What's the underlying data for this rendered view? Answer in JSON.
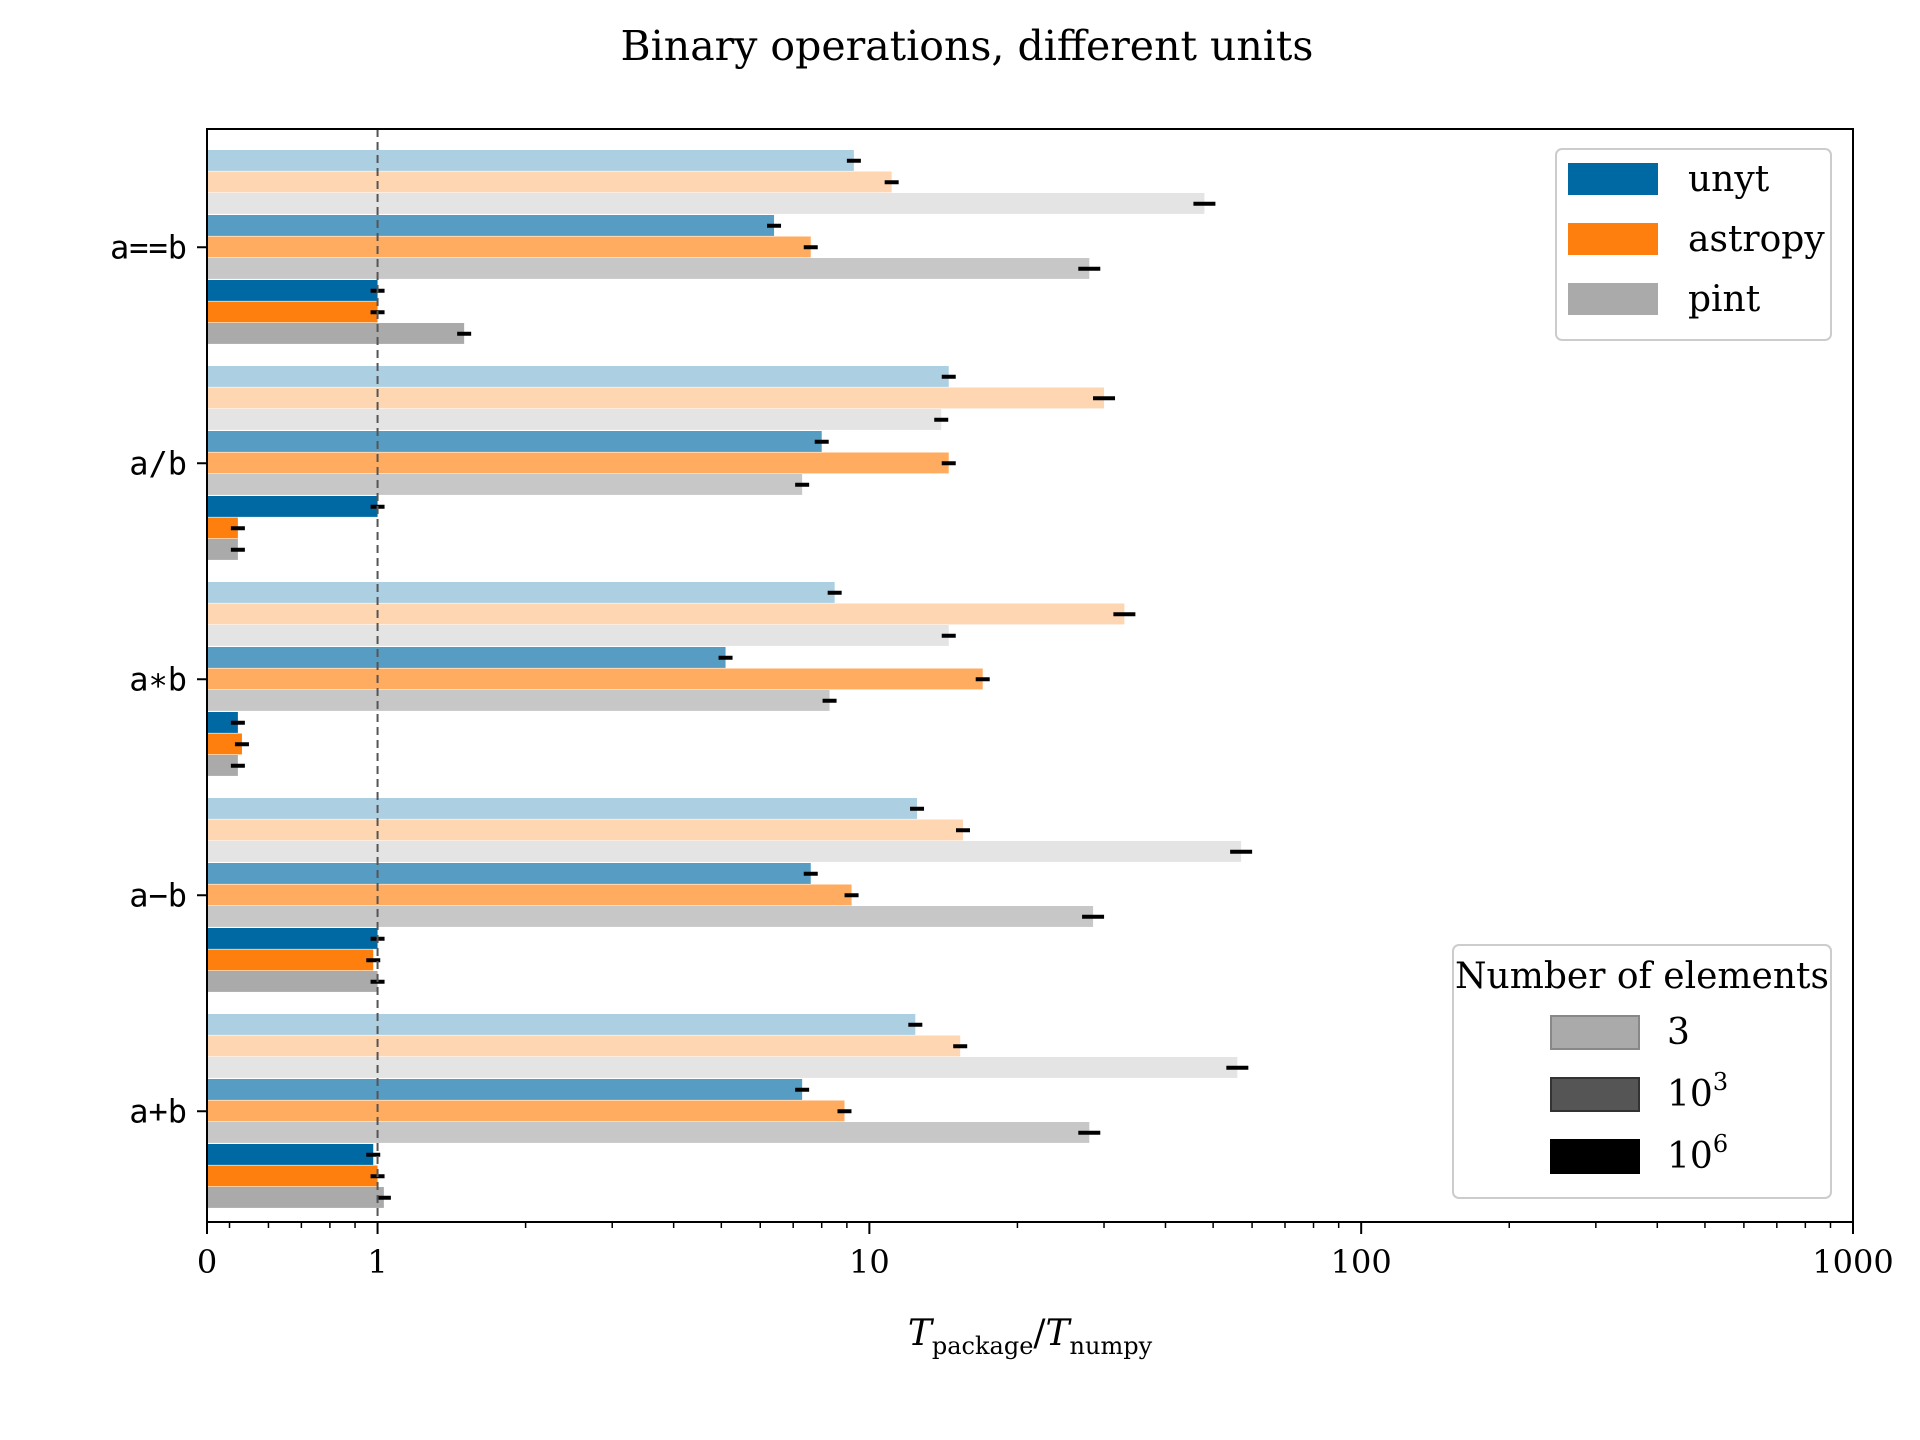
{
  "chart_data": {
    "type": "bar",
    "orientation": "horizontal",
    "title": "Binary operations, different units",
    "xlabel": {
      "T": "T",
      "num_sub": "package",
      "slash": "/",
      "den_sub": "numpy"
    },
    "xscale": "log",
    "xlim": [
      0.45,
      1000
    ],
    "x_ticks": [
      {
        "value": 0.45,
        "label": "0"
      },
      {
        "value": 1,
        "label": "1"
      },
      {
        "value": 10,
        "label": "10"
      },
      {
        "value": 100,
        "label": "100"
      },
      {
        "value": 1000,
        "label": "1000"
      }
    ],
    "reference_line": 1,
    "categories": [
      "a==b",
      "a/b",
      "a∗b",
      "a−b",
      "a+b"
    ],
    "packages": [
      {
        "name": "unyt",
        "color": "#0069a4"
      },
      {
        "name": "astropy",
        "color": "#ff7f0e"
      },
      {
        "name": "pint",
        "color": "#aaaaaa"
      }
    ],
    "sizes": [
      {
        "label": "3",
        "base": "",
        "exp": "",
        "alpha": 0.32
      },
      {
        "label": "",
        "base": "10",
        "exp": "3",
        "alpha": 0.66
      },
      {
        "label": "",
        "base": "10",
        "exp": "6",
        "alpha": 1.0
      }
    ],
    "series": [
      {
        "category": "a==b",
        "size": "3",
        "values": {
          "unyt": 9.3,
          "astropy": 11.1,
          "pint": 48.0
        }
      },
      {
        "category": "a==b",
        "size": "10^3",
        "values": {
          "unyt": 6.4,
          "astropy": 7.6,
          "pint": 28.0
        }
      },
      {
        "category": "a==b",
        "size": "10^6",
        "values": {
          "unyt": 1.0,
          "astropy": 1.0,
          "pint": 1.5
        }
      },
      {
        "category": "a/b",
        "size": "3",
        "values": {
          "unyt": 14.5,
          "astropy": 30.0,
          "pint": 14.0
        }
      },
      {
        "category": "a/b",
        "size": "10^3",
        "values": {
          "unyt": 8.0,
          "astropy": 14.5,
          "pint": 7.3
        }
      },
      {
        "category": "a/b",
        "size": "10^6",
        "values": {
          "unyt": 1.0,
          "astropy": 0.52,
          "pint": 0.52
        }
      },
      {
        "category": "a∗b",
        "size": "3",
        "values": {
          "unyt": 8.5,
          "astropy": 33.0,
          "pint": 14.5
        }
      },
      {
        "category": "a∗b",
        "size": "10^3",
        "values": {
          "unyt": 5.1,
          "astropy": 17.0,
          "pint": 8.3
        }
      },
      {
        "category": "a∗b",
        "size": "10^6",
        "values": {
          "unyt": 0.52,
          "astropy": 0.53,
          "pint": 0.52
        }
      },
      {
        "category": "a−b",
        "size": "3",
        "values": {
          "unyt": 12.5,
          "astropy": 15.5,
          "pint": 57.0
        }
      },
      {
        "category": "a−b",
        "size": "10^3",
        "values": {
          "unyt": 7.6,
          "astropy": 9.2,
          "pint": 28.5
        }
      },
      {
        "category": "a−b",
        "size": "10^6",
        "values": {
          "unyt": 1.0,
          "astropy": 0.98,
          "pint": 1.0
        }
      },
      {
        "category": "a+b",
        "size": "3",
        "values": {
          "unyt": 12.4,
          "astropy": 15.3,
          "pint": 56.0
        }
      },
      {
        "category": "a+b",
        "size": "10^3",
        "values": {
          "unyt": 7.3,
          "astropy": 8.9,
          "pint": 28.0
        }
      },
      {
        "category": "a+b",
        "size": "10^6",
        "values": {
          "unyt": 0.98,
          "astropy": 1.0,
          "pint": 1.03
        }
      }
    ],
    "legend_packages": {
      "position": "upper right",
      "entries": [
        "unyt",
        "astropy",
        "pint"
      ]
    },
    "legend_sizes": {
      "position": "lower right",
      "title": "Number of elements"
    }
  }
}
